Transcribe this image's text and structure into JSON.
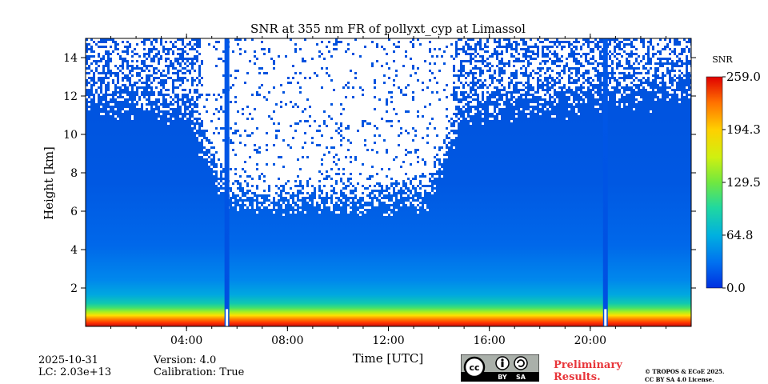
{
  "chart_data": {
    "type": "heatmap",
    "title": "SNR at 355 nm FR of pollyxt_cyp at Limassol",
    "xlabel": "Time [UTC]",
    "ylabel": "Height [km]",
    "xlim": [
      0,
      24
    ],
    "ylim": [
      0,
      15
    ],
    "x_ticks": [
      {
        "value": 4,
        "label": "04:00"
      },
      {
        "value": 8,
        "label": "08:00"
      },
      {
        "value": 12,
        "label": "12:00"
      },
      {
        "value": 16,
        "label": "16:00"
      },
      {
        "value": 20,
        "label": "20:00"
      }
    ],
    "y_ticks": [
      {
        "value": 2,
        "label": "2"
      },
      {
        "value": 4,
        "label": "4"
      },
      {
        "value": 6,
        "label": "6"
      },
      {
        "value": 8,
        "label": "8"
      },
      {
        "value": 10,
        "label": "10"
      },
      {
        "value": 12,
        "label": "12"
      },
      {
        "value": 14,
        "label": "14"
      }
    ],
    "colorbar": {
      "label": "SNR",
      "min": 0.0,
      "max": 259.0,
      "ticks": [
        {
          "value": 259.0,
          "label": "259.0"
        },
        {
          "value": 194.3,
          "label": "194.3"
        },
        {
          "value": 129.5,
          "label": "129.5"
        },
        {
          "value": 64.8,
          "label": "64.8"
        },
        {
          "value": 0.0,
          "label": "0.0"
        }
      ],
      "colormap": [
        "#0030e0",
        "#0060f0",
        "#00a0e0",
        "#20d0a0",
        "#60e040",
        "#c0f020",
        "#ffe000",
        "#ff9000",
        "#ff3000",
        "#d00000"
      ]
    },
    "profile": {
      "description_levels": [
        {
          "height_km": 0.2,
          "snr": 259
        },
        {
          "height_km": 0.5,
          "snr": 240
        },
        {
          "height_km": 0.8,
          "snr": 180
        },
        {
          "height_km": 1.2,
          "snr": 100
        },
        {
          "height_km": 1.8,
          "snr": 40
        },
        {
          "height_km": 3.0,
          "snr": 15
        },
        {
          "height_km": 6.0,
          "snr": 5
        },
        {
          "height_km": 12.0,
          "snr": 2
        }
      ]
    },
    "gaps_utc": [
      5.6,
      20.6
    ],
    "daytime_noise_window_utc": [
      4.0,
      15.0
    ]
  },
  "footer": {
    "date": "2025-10-31",
    "lc": "LC: 2.03e+13",
    "version": "Version: 4.0",
    "calibration": "Calibration: True",
    "preliminary_line1": "Preliminary",
    "preliminary_line2": "Results.",
    "license_line1": "© TROPOS & ECoE 2025.",
    "license_line2": "CC BY SA 4.0 License.",
    "cc_labels": {
      "cc": "cc",
      "by": "BY",
      "sa": "SA"
    }
  }
}
